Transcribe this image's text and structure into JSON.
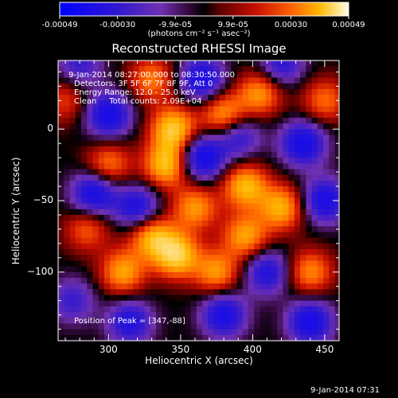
{
  "colorbar": {
    "ticks": [
      "-0.00049",
      "-0.00030",
      "-9.9e-05",
      "9.9e-05",
      "0.00030",
      "0.00049"
    ],
    "units": "(photons cm⁻² s⁻¹ asec⁻²)"
  },
  "chart_data": {
    "type": "heatmap",
    "title": "Reconstructed RHESSI Image",
    "xlabel": "Heliocentric X (arcsec)",
    "ylabel": "Heliocentric Y (arcsec)",
    "xlim": [
      265,
      460
    ],
    "ylim": [
      -148,
      48
    ],
    "x_ticks": [
      300,
      350,
      400,
      450
    ],
    "y_ticks": [
      0,
      -50,
      -100
    ],
    "x_tick_labels": [
      "300",
      "350",
      "400",
      "450"
    ],
    "y_tick_labels": [
      "0",
      "−50",
      "−100"
    ],
    "color_range": [
      -0.00049,
      0.00049
    ],
    "peak": [
      347,
      -88
    ],
    "annotations": {
      "time_range": "9-Jan-2014 08:27:00.000 to 08:30:50.000",
      "detectors": "Detectors: 3F 5F 6F 7F 8F 9F, Att 0",
      "energy": "Energy Range: 12.0 - 25.0 keV",
      "clean": "Clean     Total counts: 2.09E+04",
      "peak_text": "Position of Peak = [347,-88]"
    },
    "blobs": [
      {
        "x": 345,
        "y": 0,
        "v": 0.95
      },
      {
        "x": 340,
        "y": -25,
        "v": 0.9
      },
      {
        "x": 395,
        "y": -40,
        "v": 0.85
      },
      {
        "x": 420,
        "y": -55,
        "v": 0.8
      },
      {
        "x": 405,
        "y": 25,
        "v": 0.7
      },
      {
        "x": 380,
        "y": 10,
        "v": 0.75
      },
      {
        "x": 300,
        "y": -25,
        "v": 0.6
      },
      {
        "x": 330,
        "y": -75,
        "v": 0.8
      },
      {
        "x": 310,
        "y": -100,
        "v": 0.75
      },
      {
        "x": 347,
        "y": -88,
        "v": 1.0
      },
      {
        "x": 375,
        "y": -100,
        "v": 0.7
      },
      {
        "x": 395,
        "y": -75,
        "v": 0.75
      },
      {
        "x": 440,
        "y": -100,
        "v": 0.65
      },
      {
        "x": 285,
        "y": -70,
        "v": 0.5
      },
      {
        "x": 270,
        "y": 20,
        "v": 0.4
      },
      {
        "x": 330,
        "y": 35,
        "v": 0.6
      },
      {
        "x": 360,
        "y": -55,
        "v": 0.7
      },
      {
        "x": 450,
        "y": 20,
        "v": 0.55
      },
      {
        "x": 300,
        "y": 10,
        "v": -0.85
      },
      {
        "x": 365,
        "y": 35,
        "v": -0.8
      },
      {
        "x": 365,
        "y": -20,
        "v": -0.9
      },
      {
        "x": 320,
        "y": -55,
        "v": -0.75
      },
      {
        "x": 290,
        "y": -45,
        "v": -0.85
      },
      {
        "x": 435,
        "y": -10,
        "v": -0.85
      },
      {
        "x": 450,
        "y": -50,
        "v": -0.8
      },
      {
        "x": 390,
        "y": -5,
        "v": -0.6
      },
      {
        "x": 410,
        "y": -100,
        "v": -0.7
      },
      {
        "x": 380,
        "y": -130,
        "v": -0.8
      },
      {
        "x": 440,
        "y": -135,
        "v": -0.85
      },
      {
        "x": 315,
        "y": -135,
        "v": -0.7
      },
      {
        "x": 275,
        "y": -120,
        "v": -0.5
      },
      {
        "x": 420,
        "y": 45,
        "v": -0.6
      },
      {
        "x": 280,
        "y": 45,
        "v": -0.5
      }
    ]
  },
  "footer": {
    "datetime": "9-Jan-2014 07:31"
  }
}
